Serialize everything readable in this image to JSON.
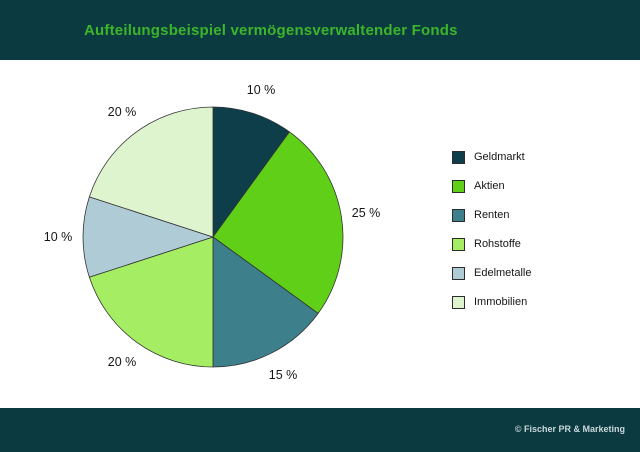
{
  "header": {
    "title": "Aufteilungsbeispiel vermögensverwaltender Fonds"
  },
  "colors": {
    "band_background": "#0b3a40",
    "title_text": "#3cb52b",
    "slice_outline": "#333333",
    "label_text": "#161616",
    "footer_text": "#c9d8da"
  },
  "chart_data": {
    "type": "pie",
    "title": "Aufteilungsbeispiel vermögensverwaltender Fonds",
    "start_angle_deg": 0,
    "direction": "clockwise",
    "legend_position": "right",
    "categories": [
      "Geldmarkt",
      "Aktien",
      "Renten",
      "Rohstoffe",
      "Edelmetalle",
      "Immobilien"
    ],
    "values": [
      10,
      25,
      15,
      20,
      10,
      20
    ],
    "slices": [
      {
        "label": "Geldmarkt",
        "value": 10,
        "display": "10 %",
        "color": "#0e3e4a"
      },
      {
        "label": "Aktien",
        "value": 25,
        "display": "25 %",
        "color": "#60cf17"
      },
      {
        "label": "Renten",
        "value": 15,
        "display": "15 %",
        "color": "#3d808c"
      },
      {
        "label": "Rohstoffe",
        "value": 20,
        "display": "20 %",
        "color": "#a5ed62"
      },
      {
        "label": "Edelmetalle",
        "value": 10,
        "display": "10 %",
        "color": "#aecbd6"
      },
      {
        "label": "Immobilien",
        "value": 20,
        "display": "20 %",
        "color": "#def4ce"
      }
    ]
  },
  "footer": {
    "credit": "© Fischer PR & Marketing"
  }
}
